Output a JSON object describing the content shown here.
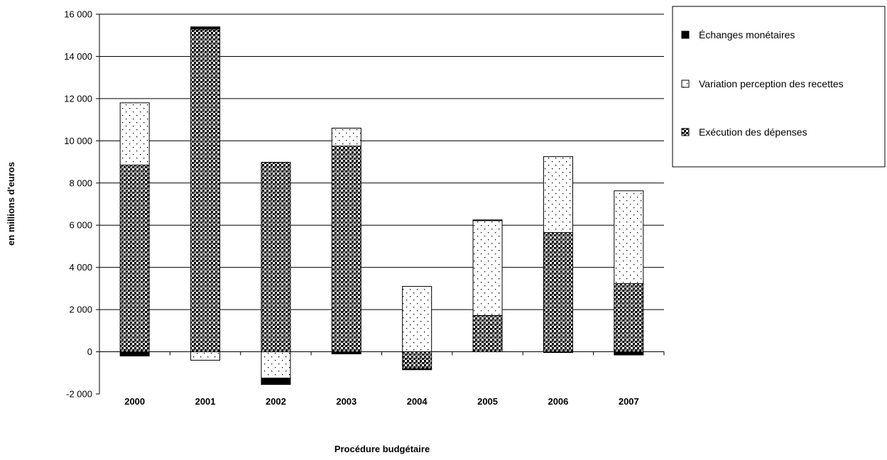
{
  "chart_data": {
    "type": "bar",
    "stacked": true,
    "xlabel": "Procédure budgétaire",
    "ylabel": "en millions d'euros",
    "ylim": [
      -2000,
      16000
    ],
    "yticks": [
      -2000,
      0,
      2000,
      4000,
      6000,
      8000,
      10000,
      12000,
      14000,
      16000
    ],
    "ytick_labels": [
      "-2 000",
      "0",
      "2 000",
      "4 000",
      "6 000",
      "8 000",
      "10 000",
      "12 000",
      "14 000",
      "16 000"
    ],
    "grid": true,
    "legend_position": "top-right",
    "categories": [
      "2000",
      "2001",
      "2002",
      "2003",
      "2004",
      "2005",
      "2006",
      "2007"
    ],
    "series": [
      {
        "name": "Échanges monétaires",
        "pattern": "solid-black",
        "values": [
          -200,
          100,
          -300,
          -100,
          -50,
          30,
          -20,
          -150
        ]
      },
      {
        "name": "Variation perception des recettes",
        "pattern": "sparse-dots",
        "values": [
          2950,
          -400,
          -1250,
          850,
          3100,
          4500,
          3600,
          4400
        ]
      },
      {
        "name": "Exécution des dépenses",
        "pattern": "dense-squares",
        "values": [
          8850,
          15300,
          8980,
          9750,
          -800,
          1720,
          5650,
          3230
        ]
      }
    ]
  }
}
